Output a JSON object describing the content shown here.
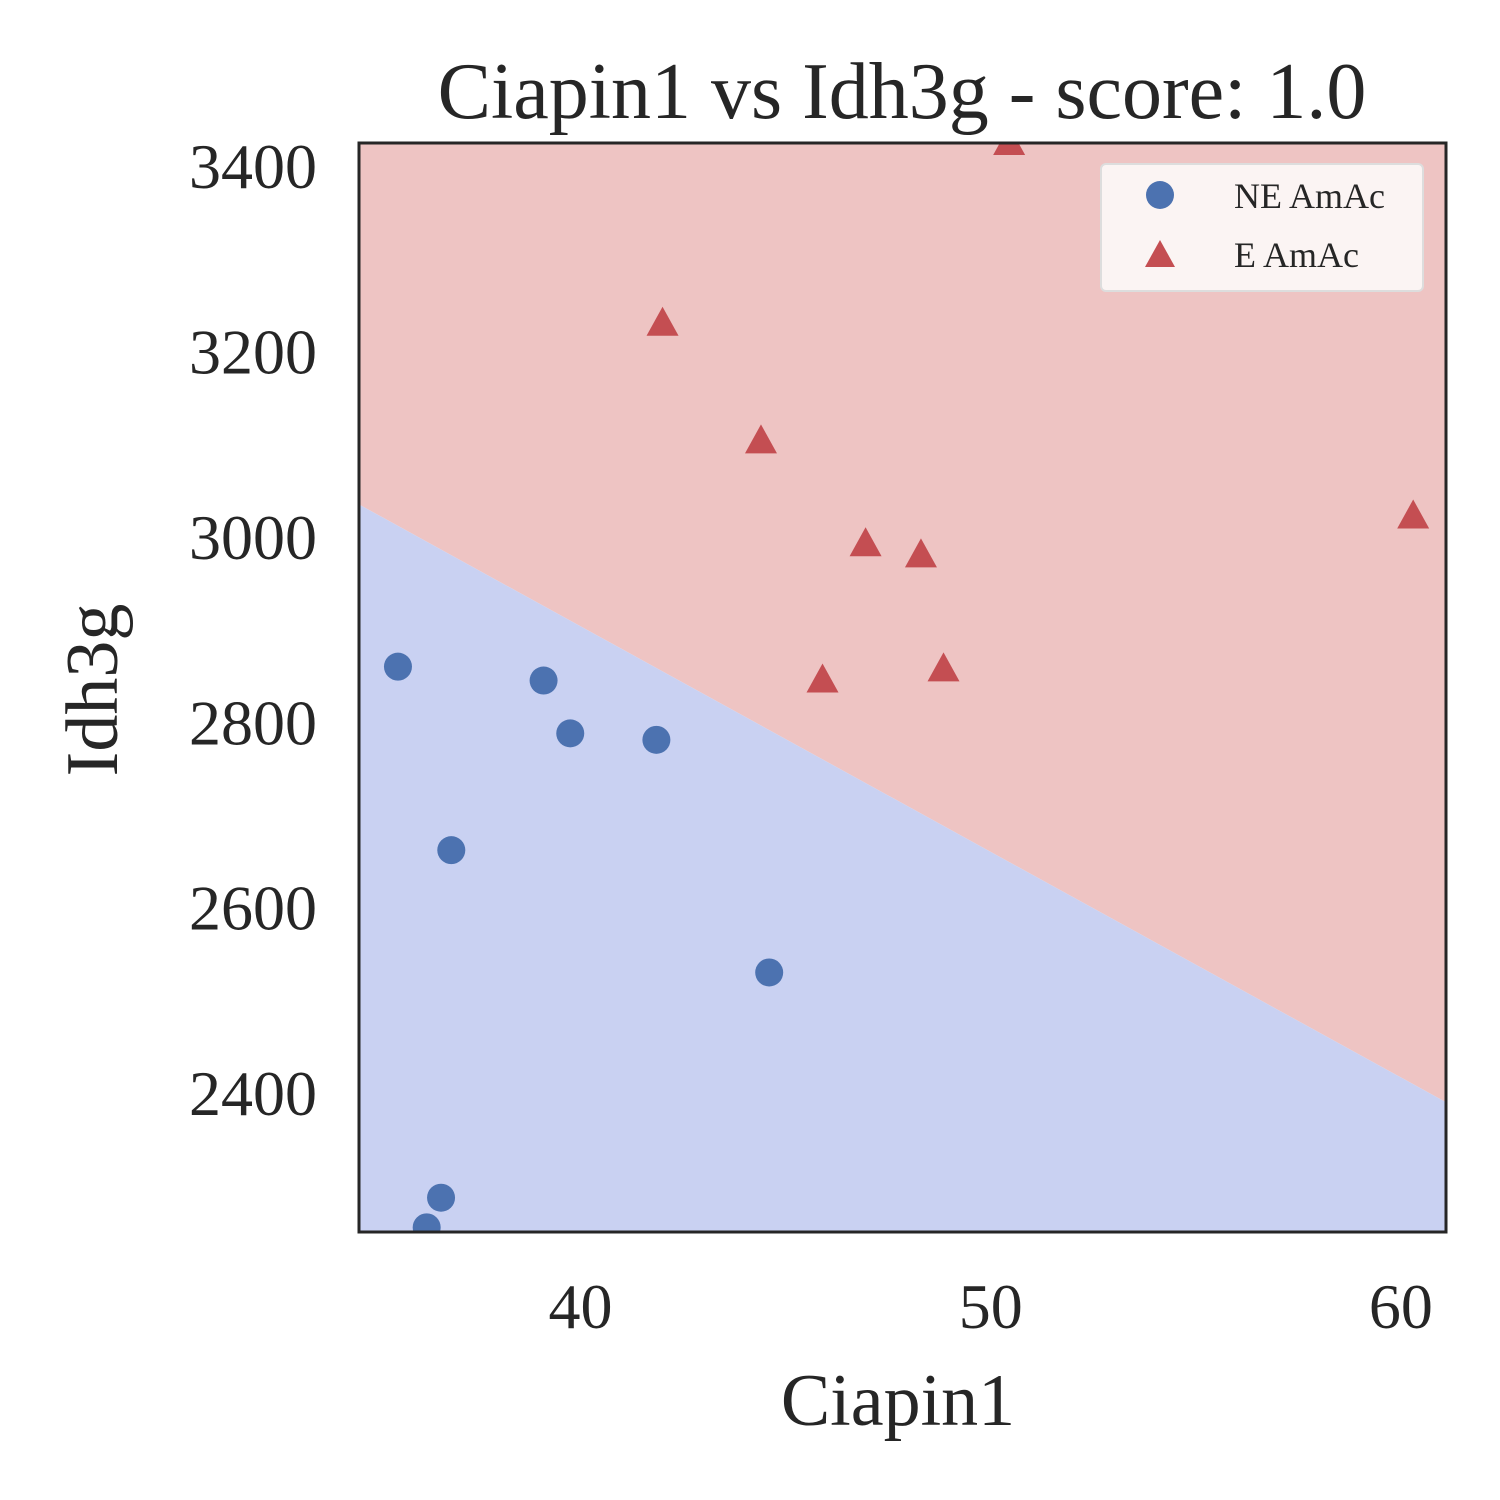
{
  "chart_data": {
    "type": "scatter",
    "title": "Ciapin1 vs Idh3g - score: 1.0",
    "xlabel": "Ciapin1",
    "ylabel": "Idh3g",
    "xlim": [
      34.6,
      61.1
    ],
    "ylim": [
      2250,
      3425
    ],
    "xticks": [
      "40",
      "50",
      "60"
    ],
    "yticks": [
      "2400",
      "2600",
      "2800",
      "3000",
      "3200",
      "3400"
    ],
    "grid": false,
    "legend_position": "top-right",
    "decision_boundary": {
      "x": [
        34.6,
        61.1
      ],
      "y": [
        3035,
        2390
      ]
    },
    "regions": {
      "below": "#c9d1f2",
      "above": "#eec4c3"
    },
    "series": [
      {
        "name": "NE AmAc",
        "marker": "circle",
        "color": "#4c72b0",
        "points": [
          [
            35.55,
            2860
          ],
          [
            39.1,
            2845
          ],
          [
            39.75,
            2788
          ],
          [
            41.85,
            2781
          ],
          [
            36.85,
            2662
          ],
          [
            44.6,
            2530
          ],
          [
            36.6,
            2287
          ],
          [
            36.25,
            2255
          ]
        ]
      },
      {
        "name": "E AmAc",
        "marker": "triangle",
        "color": "#c44e52",
        "points": [
          [
            50.45,
            3425
          ],
          [
            42.0,
            3230
          ],
          [
            44.4,
            3103
          ],
          [
            46.95,
            2992
          ],
          [
            48.3,
            2980
          ],
          [
            60.3,
            3022
          ],
          [
            48.85,
            2857
          ],
          [
            45.9,
            2845
          ]
        ]
      }
    ]
  }
}
